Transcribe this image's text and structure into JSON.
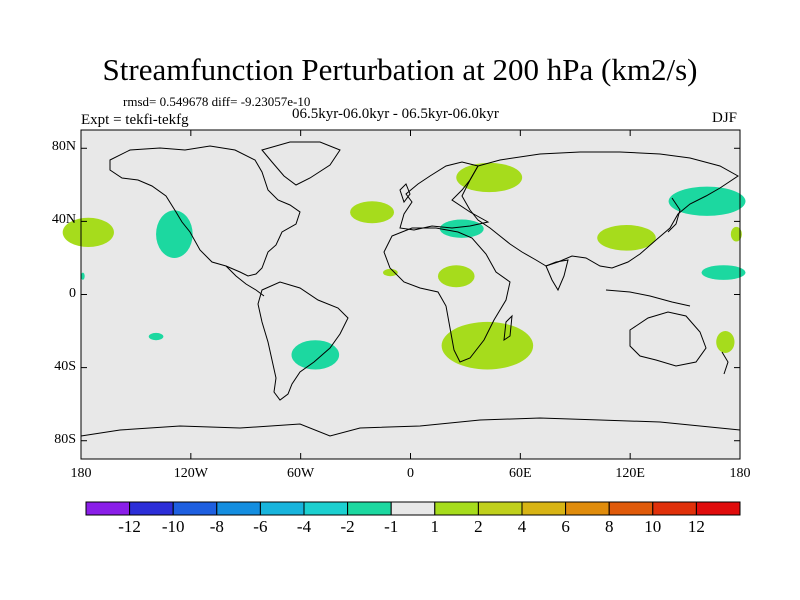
{
  "title": "Streamfunction Perturbation at 200 hPa (km2/s)",
  "stats_line": "rmsd= 0.549678 diff= -9.23057e-10",
  "period_line": "06.5kyr-06.0kyr - 06.5kyr-06.0kyr",
  "expt_line": "Expt = tekfi-tekfg",
  "season": "DJF",
  "map": {
    "ocean_color": "#e8e8e8",
    "coast_color": "#000000",
    "lat_ticks": [
      "80N",
      "40N",
      "0",
      "40S",
      "80S"
    ],
    "lon_ticks": [
      "180",
      "120W",
      "60W",
      "0",
      "60E",
      "120E",
      "180"
    ]
  },
  "colorbar": {
    "colors": [
      "#8a1ee8",
      "#2c2ed8",
      "#1e5fe0",
      "#148ee0",
      "#18b4dc",
      "#1cd0d0",
      "#1cd8a0",
      "#e8e8e8",
      "#a6dc1c",
      "#c0d01c",
      "#d8b414",
      "#e08c0c",
      "#e05a0a",
      "#e0300a",
      "#e00c0c"
    ],
    "labels": [
      "-12",
      "-10",
      "-8",
      "-6",
      "-4",
      "-2",
      "-1",
      "1",
      "2",
      "4",
      "6",
      "8",
      "10",
      "12"
    ]
  },
  "anomalies": [
    {
      "name": "pacific-east-positive",
      "lon": -176,
      "lat": 34,
      "rlon": 14,
      "rlat": 8,
      "sign": "positive"
    },
    {
      "name": "northeast-pacific-negative",
      "lon": -129,
      "lat": 33,
      "rlon": 10,
      "rlat": 13,
      "sign": "negative"
    },
    {
      "name": "north-atlantic-positive",
      "lon": -21,
      "lat": 45,
      "rlon": 12,
      "rlat": 6,
      "sign": "positive"
    },
    {
      "name": "eastern-europe-positive",
      "lon": 43,
      "lat": 64,
      "rlon": 18,
      "rlat": 8,
      "sign": "positive"
    },
    {
      "name": "mediterranean-negative",
      "lon": 28,
      "lat": 36,
      "rlon": 12,
      "rlat": 5,
      "sign": "negative"
    },
    {
      "name": "west-africa-positive",
      "lon": -11,
      "lat": 12,
      "rlon": 4,
      "rlat": 2,
      "sign": "positive"
    },
    {
      "name": "sahel-positive",
      "lon": 25,
      "lat": 10,
      "rlon": 10,
      "rlat": 6,
      "sign": "positive"
    },
    {
      "name": "south-africa-positive",
      "lon": 42,
      "lat": -28,
      "rlon": 25,
      "rlat": 13,
      "sign": "positive"
    },
    {
      "name": "south-america-negative",
      "lon": -52,
      "lat": -33,
      "rlon": 13,
      "rlat": 8,
      "sign": "negative"
    },
    {
      "name": "south-pacific-negative",
      "lon": -139,
      "lat": -23,
      "rlon": 4,
      "rlat": 2,
      "sign": "negative"
    },
    {
      "name": "tibet-positive",
      "lon": 118,
      "lat": 31,
      "rlon": 16,
      "rlat": 7,
      "sign": "positive"
    },
    {
      "name": "japan-negative",
      "lon": 162,
      "lat": 51,
      "rlon": 21,
      "rlat": 8,
      "sign": "negative"
    },
    {
      "name": "east-edge-positive",
      "lon": 178,
      "lat": 33,
      "rlon": 3,
      "rlat": 4,
      "sign": "positive"
    },
    {
      "name": "philippine-negative",
      "lon": 171,
      "lat": 12,
      "rlon": 12,
      "rlat": 4,
      "sign": "negative"
    },
    {
      "name": "new-zealand-positive",
      "lon": 172,
      "lat": -26,
      "rlon": 5,
      "rlat": 6,
      "sign": "positive"
    },
    {
      "name": "west-edge-negative",
      "lon": -179,
      "lat": 10,
      "rlon": 1,
      "rlat": 2,
      "sign": "negative"
    }
  ]
}
